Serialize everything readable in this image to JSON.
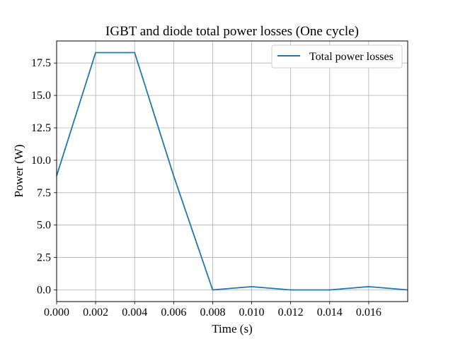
{
  "chart_data": {
    "type": "line",
    "title": "IGBT and diode total power losses (One cycle)",
    "xlabel": "Time (s)",
    "ylabel": "Power (W)",
    "xlim": [
      0,
      0.018
    ],
    "ylim": [
      -0.9,
      19.2
    ],
    "xticks": [
      0.0,
      0.002,
      0.004,
      0.006,
      0.008,
      0.01,
      0.012,
      0.014,
      0.016
    ],
    "xtick_labels": [
      "0.000",
      "0.002",
      "0.004",
      "0.006",
      "0.008",
      "0.010",
      "0.012",
      "0.014",
      "0.016"
    ],
    "yticks": [
      0.0,
      2.5,
      5.0,
      7.5,
      10.0,
      12.5,
      15.0,
      17.5
    ],
    "ytick_labels": [
      "0.0",
      "2.5",
      "5.0",
      "7.5",
      "10.0",
      "12.5",
      "15.0",
      "17.5"
    ],
    "grid": true,
    "legend_position": "top-right",
    "series": [
      {
        "name": "Total power losses",
        "color": "#1f77b4",
        "x": [
          0.0,
          0.002,
          0.004,
          0.006,
          0.008,
          0.01,
          0.012,
          0.014,
          0.016,
          0.018
        ],
        "y": [
          8.8,
          18.3,
          18.3,
          8.8,
          0.0,
          0.25,
          0.0,
          0.0,
          0.25,
          0.0
        ]
      }
    ]
  }
}
